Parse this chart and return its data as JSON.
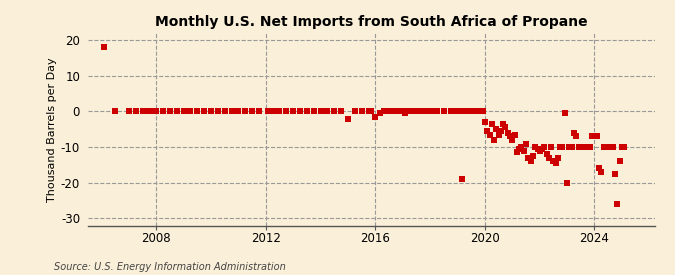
{
  "title": "Monthly U.S. Net Imports from South Africa of Propane",
  "ylabel": "Thousand Barrels per Day",
  "source": "Source: U.S. Energy Information Administration",
  "background_color": "#faefd8",
  "ylim": [
    -32,
    22
  ],
  "yticks": [
    -30,
    -20,
    -10,
    0,
    10,
    20
  ],
  "xlim": [
    2005.5,
    2026.2
  ],
  "xticks": [
    2008,
    2012,
    2016,
    2020,
    2024
  ],
  "vlines": [
    2008,
    2012,
    2016,
    2020,
    2024
  ],
  "marker_color": "#cc0000",
  "marker_size": 15,
  "data_points": [
    [
      2006.08,
      18.0
    ],
    [
      2006.5,
      0.0
    ],
    [
      2007.0,
      0.0
    ],
    [
      2007.25,
      0.0
    ],
    [
      2007.5,
      0.0
    ],
    [
      2007.75,
      0.0
    ],
    [
      2007.92,
      0.0
    ],
    [
      2008.0,
      0.0
    ],
    [
      2008.25,
      0.0
    ],
    [
      2008.5,
      0.0
    ],
    [
      2008.75,
      0.0
    ],
    [
      2009.0,
      0.0
    ],
    [
      2009.25,
      0.0
    ],
    [
      2009.5,
      0.0
    ],
    [
      2009.75,
      0.0
    ],
    [
      2010.0,
      0.0
    ],
    [
      2010.25,
      0.0
    ],
    [
      2010.5,
      0.0
    ],
    [
      2010.75,
      0.0
    ],
    [
      2011.0,
      0.0
    ],
    [
      2011.25,
      0.0
    ],
    [
      2011.5,
      0.0
    ],
    [
      2011.75,
      0.0
    ],
    [
      2012.08,
      0.0
    ],
    [
      2012.25,
      0.0
    ],
    [
      2012.5,
      0.0
    ],
    [
      2012.75,
      0.0
    ],
    [
      2013.0,
      0.0
    ],
    [
      2013.25,
      0.0
    ],
    [
      2013.5,
      0.0
    ],
    [
      2013.75,
      0.0
    ],
    [
      2014.0,
      0.0
    ],
    [
      2014.25,
      0.0
    ],
    [
      2014.5,
      0.0
    ],
    [
      2014.75,
      0.0
    ],
    [
      2015.0,
      -2.0
    ],
    [
      2015.25,
      0.0
    ],
    [
      2015.5,
      0.0
    ],
    [
      2015.75,
      0.0
    ],
    [
      2015.83,
      0.0
    ],
    [
      2016.0,
      -1.5
    ],
    [
      2016.17,
      -0.5
    ],
    [
      2016.33,
      0.0
    ],
    [
      2016.5,
      0.0
    ],
    [
      2016.67,
      0.0
    ],
    [
      2016.75,
      0.0
    ],
    [
      2016.83,
      0.0
    ],
    [
      2016.92,
      0.0
    ],
    [
      2017.0,
      0.0
    ],
    [
      2017.08,
      -0.5
    ],
    [
      2017.17,
      0.0
    ],
    [
      2017.25,
      0.0
    ],
    [
      2017.33,
      0.0
    ],
    [
      2017.42,
      0.0
    ],
    [
      2017.5,
      0.0
    ],
    [
      2017.58,
      0.0
    ],
    [
      2017.67,
      0.0
    ],
    [
      2017.75,
      0.0
    ],
    [
      2017.83,
      0.0
    ],
    [
      2017.92,
      0.0
    ],
    [
      2018.0,
      0.0
    ],
    [
      2018.08,
      0.0
    ],
    [
      2018.17,
      0.0
    ],
    [
      2018.25,
      0.0
    ],
    [
      2018.5,
      0.0
    ],
    [
      2018.75,
      0.0
    ],
    [
      2018.92,
      0.0
    ],
    [
      2019.0,
      0.0
    ],
    [
      2019.08,
      0.0
    ],
    [
      2019.17,
      -19.0
    ],
    [
      2019.25,
      0.0
    ],
    [
      2019.33,
      0.0
    ],
    [
      2019.5,
      0.0
    ],
    [
      2019.58,
      0.0
    ],
    [
      2019.75,
      0.0
    ],
    [
      2019.83,
      0.0
    ],
    [
      2019.92,
      0.0
    ],
    [
      2020.0,
      -3.0
    ],
    [
      2020.08,
      -5.5
    ],
    [
      2020.17,
      -6.5
    ],
    [
      2020.25,
      -3.5
    ],
    [
      2020.33,
      -8.0
    ],
    [
      2020.42,
      -5.0
    ],
    [
      2020.5,
      -6.5
    ],
    [
      2020.58,
      -5.5
    ],
    [
      2020.67,
      -3.5
    ],
    [
      2020.75,
      -4.5
    ],
    [
      2020.83,
      -6.0
    ],
    [
      2020.92,
      -7.0
    ],
    [
      2021.0,
      -8.0
    ],
    [
      2021.08,
      -6.5
    ],
    [
      2021.17,
      -11.5
    ],
    [
      2021.25,
      -10.5
    ],
    [
      2021.33,
      -10.0
    ],
    [
      2021.42,
      -11.0
    ],
    [
      2021.5,
      -9.0
    ],
    [
      2021.58,
      -13.0
    ],
    [
      2021.67,
      -14.0
    ],
    [
      2021.75,
      -12.5
    ],
    [
      2021.83,
      -10.0
    ],
    [
      2021.92,
      -10.5
    ],
    [
      2022.0,
      -11.0
    ],
    [
      2022.08,
      -10.5
    ],
    [
      2022.17,
      -10.0
    ],
    [
      2022.25,
      -12.0
    ],
    [
      2022.33,
      -13.0
    ],
    [
      2022.42,
      -10.0
    ],
    [
      2022.5,
      -14.0
    ],
    [
      2022.58,
      -14.5
    ],
    [
      2022.67,
      -13.0
    ],
    [
      2022.75,
      -10.0
    ],
    [
      2022.83,
      -10.0
    ],
    [
      2022.92,
      -0.5
    ],
    [
      2023.0,
      -20.0
    ],
    [
      2023.08,
      -10.0
    ],
    [
      2023.17,
      -10.0
    ],
    [
      2023.25,
      -6.0
    ],
    [
      2023.33,
      -7.0
    ],
    [
      2023.42,
      -10.0
    ],
    [
      2023.5,
      -10.0
    ],
    [
      2023.58,
      -10.0
    ],
    [
      2023.67,
      -10.0
    ],
    [
      2023.75,
      -10.0
    ],
    [
      2023.83,
      -10.0
    ],
    [
      2023.92,
      -7.0
    ],
    [
      2024.0,
      -7.0
    ],
    [
      2024.08,
      -7.0
    ],
    [
      2024.17,
      -16.0
    ],
    [
      2024.25,
      -17.0
    ],
    [
      2024.33,
      -10.0
    ],
    [
      2024.42,
      -10.0
    ],
    [
      2024.5,
      -10.0
    ],
    [
      2024.58,
      -10.0
    ],
    [
      2024.67,
      -10.0
    ],
    [
      2024.75,
      -17.5
    ],
    [
      2024.83,
      -26.0
    ],
    [
      2024.92,
      -14.0
    ],
    [
      2025.0,
      -10.0
    ],
    [
      2025.08,
      -10.0
    ]
  ]
}
